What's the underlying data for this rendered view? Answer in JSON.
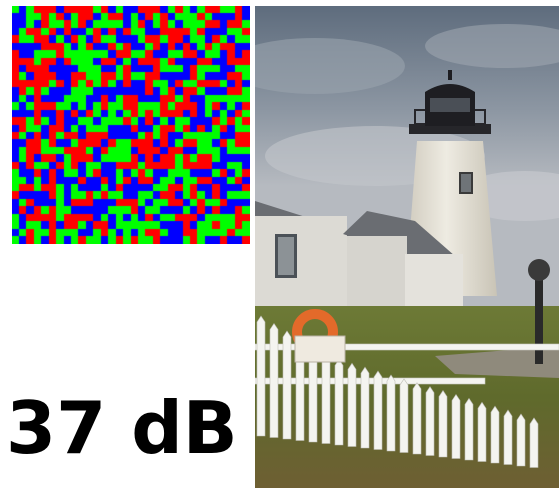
{
  "mosaic": {
    "rows": 32,
    "cols": 32,
    "colors": [
      "#0000ff",
      "#00ff00",
      "#ff0000"
    ]
  },
  "photo": {
    "sky_top": "#5e6c7d",
    "sky_bottom": "#b6bac0",
    "tower_color": "#e6e3d9",
    "lantern_color": "#1e1e22",
    "house_color": "#dcdad4",
    "roof_color": "#6a6d72",
    "grass_color": "#5f6a2c",
    "fence_color": "#f4f4f0"
  },
  "metric": {
    "text": "37 dB"
  }
}
